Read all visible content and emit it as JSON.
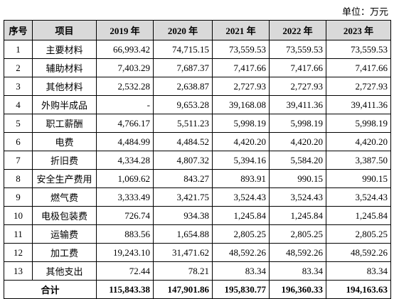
{
  "unit": "单位：万元",
  "table": {
    "header": [
      "序号",
      "项目",
      "2019 年",
      "2020 年",
      "2021 年",
      "2022 年",
      "2023 年"
    ],
    "rows": [
      [
        "1",
        "主要材料",
        "66,993.42",
        "74,715.15",
        "73,559.53",
        "73,559.53",
        "73,559.53"
      ],
      [
        "2",
        "辅助材料",
        "7,403.29",
        "7,687.37",
        "7,417.66",
        "7,417.66",
        "7,417.66"
      ],
      [
        "3",
        "其他材料",
        "2,532.28",
        "2,638.87",
        "2,727.93",
        "2,727.93",
        "2,727.93"
      ],
      [
        "4",
        "外购半成品",
        "-",
        "9,653.28",
        "39,168.08",
        "39,411.36",
        "39,411.36"
      ],
      [
        "5",
        "职工薪酬",
        "4,766.17",
        "5,511.23",
        "5,998.19",
        "5,998.19",
        "5,998.19"
      ],
      [
        "6",
        "电费",
        "4,484.99",
        "4,484.52",
        "4,420.20",
        "4,420.20",
        "4,420.20"
      ],
      [
        "7",
        "折旧费",
        "4,334.28",
        "4,807.32",
        "5,394.16",
        "5,584.20",
        "3,387.50"
      ],
      [
        "8",
        "安全生产费用",
        "1,069.62",
        "843.27",
        "893.91",
        "990.15",
        "990.15"
      ],
      [
        "9",
        "燃气费",
        "3,333.49",
        "3,421.75",
        "3,524.43",
        "3,524.43",
        "3,524.43"
      ],
      [
        "10",
        "电极包装费",
        "726.74",
        "934.38",
        "1,245.84",
        "1,245.84",
        "1,245.84"
      ],
      [
        "11",
        "运输费",
        "883.56",
        "1,654.88",
        "2,805.25",
        "2,805.25",
        "2,805.25"
      ],
      [
        "12",
        "加工费",
        "19,243.10",
        "31,471.62",
        "48,592.26",
        "48,592.26",
        "48,592.26"
      ],
      [
        "13",
        "其他支出",
        "72.44",
        "78.21",
        "83.34",
        "83.34",
        "83.34"
      ]
    ],
    "total": [
      "合计",
      "115,843.38",
      "147,901.86",
      "195,830.77",
      "196,360.33",
      "194,163.63"
    ]
  }
}
